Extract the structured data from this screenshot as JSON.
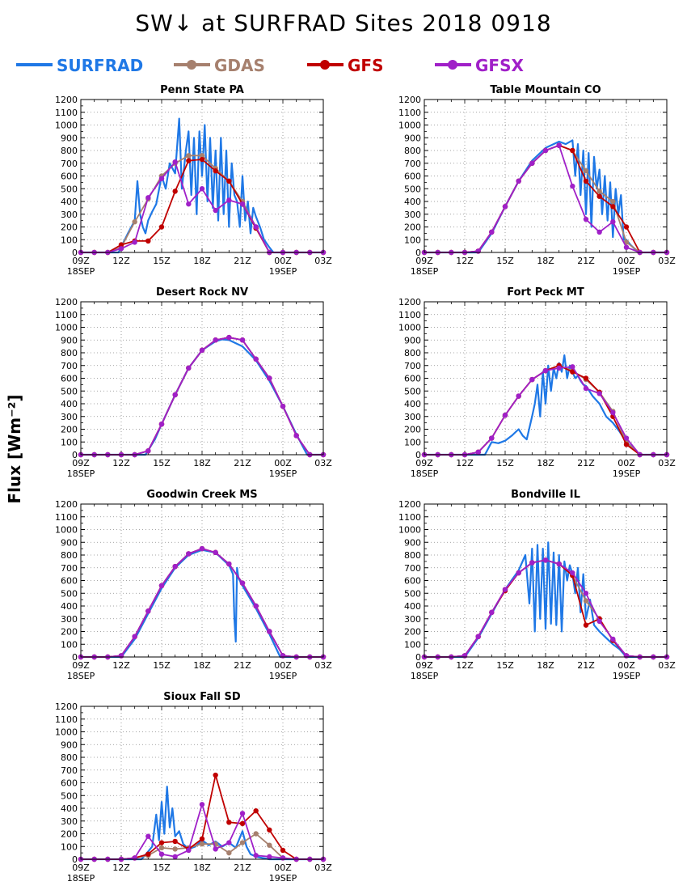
{
  "title": "SW↓ at SURFRAD Sites     2018 0918",
  "y_axis_title": "Flux [Wm⁻²]",
  "legend": [
    {
      "name": "SURFRAD",
      "color": "#1f78e6",
      "marker": false
    },
    {
      "name": "GDAS",
      "color": "#a6806e",
      "marker": true
    },
    {
      "name": "GFS",
      "color": "#c00000",
      "marker": true
    },
    {
      "name": "GFSX",
      "color": "#a020c8",
      "marker": true
    }
  ],
  "axes": {
    "y_ticks": [
      0,
      100,
      200,
      300,
      400,
      500,
      600,
      700,
      800,
      900,
      1000,
      1100,
      1200
    ],
    "ylim": [
      0,
      1200
    ],
    "x_tick_labels": [
      "09Z",
      "12Z",
      "15Z",
      "18Z",
      "21Z",
      "00Z",
      "03Z"
    ],
    "x_tick_hours": [
      9,
      12,
      15,
      18,
      21,
      24,
      27
    ],
    "xlim": [
      9,
      27
    ],
    "x_date_labels": [
      {
        "hour": 9,
        "label": "18SEP"
      },
      {
        "hour": 24,
        "label": "19SEP"
      }
    ],
    "grid": "dotted"
  },
  "chart_data": [
    {
      "type": "line",
      "title": "Penn State PA",
      "x_model_hours": [
        9,
        10,
        11,
        12,
        13,
        14,
        15,
        16,
        17,
        18,
        19,
        20,
        21,
        22,
        23,
        24,
        25,
        26,
        27
      ],
      "series": [
        {
          "name": "GDAS",
          "values": [
            0,
            0,
            0,
            40,
            240,
            420,
            600,
            700,
            760,
            760,
            660,
            560,
            400,
            200,
            0,
            0,
            0,
            0,
            0
          ]
        },
        {
          "name": "GFS",
          "values": [
            0,
            0,
            0,
            60,
            90,
            90,
            200,
            480,
            720,
            730,
            640,
            560,
            380,
            190,
            0,
            0,
            0,
            0,
            0
          ]
        },
        {
          "name": "GFSX",
          "values": [
            0,
            0,
            0,
            30,
            80,
            430,
            580,
            710,
            380,
            500,
            330,
            410,
            380,
            200,
            0,
            0,
            0,
            0,
            0
          ]
        }
      ],
      "surfrad": {
        "x": [
          9,
          11.8,
          12.5,
          13,
          13.2,
          13.4,
          13.6,
          13.8,
          14,
          14.3,
          14.6,
          15,
          15.3,
          15.6,
          16,
          16.3,
          16.5,
          16.8,
          17,
          17.2,
          17.4,
          17.6,
          17.8,
          18,
          18.2,
          18.4,
          18.6,
          18.8,
          19,
          19.2,
          19.4,
          19.6,
          19.8,
          20,
          20.2,
          20.4,
          20.6,
          20.8,
          21,
          21.2,
          21.4,
          21.6,
          21.8,
          22,
          22.3,
          22.6,
          23,
          23.3,
          27
        ],
        "y": [
          0,
          0,
          150,
          250,
          560,
          300,
          200,
          150,
          250,
          320,
          380,
          600,
          500,
          700,
          620,
          1050,
          500,
          800,
          950,
          450,
          900,
          300,
          950,
          600,
          1000,
          400,
          900,
          350,
          800,
          250,
          900,
          300,
          800,
          200,
          700,
          450,
          400,
          200,
          600,
          250,
          400,
          150,
          350,
          280,
          200,
          100,
          40,
          0,
          0
        ]
      }
    },
    {
      "type": "line",
      "title": "Table Mountain CO",
      "x_model_hours": [
        9,
        10,
        11,
        12,
        13,
        14,
        15,
        16,
        17,
        18,
        19,
        20,
        21,
        22,
        23,
        24,
        25,
        26,
        27
      ],
      "series": [
        {
          "name": "GDAS",
          "values": [
            0,
            0,
            0,
            0,
            10,
            160,
            360,
            560,
            700,
            800,
            840,
            800,
            640,
            480,
            400,
            80,
            0,
            0,
            0
          ]
        },
        {
          "name": "GFS",
          "values": [
            0,
            0,
            0,
            0,
            10,
            160,
            360,
            560,
            700,
            800,
            840,
            800,
            560,
            440,
            360,
            200,
            0,
            0,
            0
          ]
        },
        {
          "name": "GFSX",
          "values": [
            0,
            0,
            0,
            0,
            10,
            160,
            360,
            560,
            700,
            800,
            840,
            520,
            260,
            160,
            240,
            40,
            0,
            0,
            0
          ]
        }
      ],
      "surfrad": {
        "x": [
          9,
          13,
          14,
          15,
          16,
          17,
          18,
          19,
          19.5,
          20,
          20.2,
          20.4,
          20.6,
          20.8,
          21,
          21.2,
          21.4,
          21.6,
          21.8,
          22,
          22.2,
          22.4,
          22.6,
          22.8,
          23,
          23.2,
          23.4,
          23.6,
          23.8,
          24,
          24.3,
          24.6,
          25,
          27
        ],
        "y": [
          0,
          0,
          150,
          360,
          560,
          720,
          820,
          870,
          850,
          880,
          600,
          850,
          450,
          800,
          300,
          780,
          200,
          750,
          500,
          650,
          300,
          600,
          250,
          550,
          120,
          500,
          300,
          450,
          100,
          100,
          60,
          30,
          0,
          0
        ]
      }
    },
    {
      "type": "line",
      "title": "Desert Rock NV",
      "x_model_hours": [
        9,
        10,
        11,
        12,
        13,
        14,
        15,
        16,
        17,
        18,
        19,
        20,
        21,
        22,
        23,
        24,
        25,
        26,
        27
      ],
      "series": [
        {
          "name": "GDAS",
          "values": [
            0,
            0,
            0,
            0,
            0,
            30,
            240,
            470,
            680,
            820,
            900,
            920,
            900,
            750,
            600,
            380,
            150,
            0,
            0
          ]
        },
        {
          "name": "GFS",
          "values": [
            0,
            0,
            0,
            0,
            0,
            30,
            240,
            470,
            680,
            820,
            900,
            920,
            900,
            750,
            600,
            380,
            150,
            0,
            0
          ]
        },
        {
          "name": "GFSX",
          "values": [
            0,
            0,
            0,
            0,
            0,
            30,
            240,
            470,
            680,
            820,
            900,
            920,
            900,
            750,
            600,
            380,
            150,
            0,
            0
          ]
        }
      ],
      "surfrad": {
        "x": [
          9,
          13.8,
          14.5,
          15,
          16,
          17,
          18,
          19,
          19.5,
          20,
          21,
          22,
          23,
          24,
          25,
          25.8,
          27
        ],
        "y": [
          0,
          0,
          120,
          240,
          470,
          680,
          820,
          890,
          905,
          900,
          850,
          740,
          580,
          380,
          160,
          0,
          0
        ]
      }
    },
    {
      "type": "line",
      "title": "Fort Peck MT",
      "x_model_hours": [
        9,
        10,
        11,
        12,
        13,
        14,
        15,
        16,
        17,
        18,
        19,
        20,
        21,
        22,
        23,
        24,
        25,
        26,
        27
      ],
      "series": [
        {
          "name": "GDAS",
          "values": [
            0,
            0,
            0,
            0,
            20,
            130,
            310,
            460,
            590,
            660,
            700,
            660,
            590,
            490,
            340,
            100,
            0,
            0,
            0
          ]
        },
        {
          "name": "GFS",
          "values": [
            0,
            0,
            0,
            0,
            20,
            130,
            310,
            460,
            590,
            660,
            700,
            650,
            600,
            490,
            300,
            80,
            0,
            0,
            0
          ]
        },
        {
          "name": "GFSX",
          "values": [
            0,
            0,
            0,
            0,
            20,
            130,
            310,
            460,
            590,
            660,
            680,
            690,
            520,
            480,
            330,
            130,
            0,
            0,
            0
          ]
        }
      ],
      "surfrad": {
        "x": [
          9,
          13.5,
          14,
          14.5,
          15,
          15.5,
          16,
          16.3,
          16.6,
          17,
          17.2,
          17.4,
          17.6,
          17.8,
          18,
          18.2,
          18.4,
          18.6,
          18.8,
          19,
          19.2,
          19.4,
          19.6,
          19.8,
          20,
          20.2,
          20.4,
          20.6,
          20.8,
          21,
          21.5,
          22,
          22.5,
          23,
          23.5,
          24,
          24.5,
          25,
          27
        ],
        "y": [
          0,
          0,
          100,
          90,
          110,
          150,
          200,
          150,
          120,
          300,
          400,
          550,
          300,
          650,
          400,
          700,
          500,
          680,
          600,
          720,
          650,
          780,
          600,
          700,
          650,
          600,
          620,
          580,
          550,
          540,
          460,
          400,
          300,
          250,
          180,
          100,
          50,
          0,
          0
        ]
      }
    },
    {
      "type": "line",
      "title": "Goodwin Creek MS",
      "x_model_hours": [
        9,
        10,
        11,
        12,
        13,
        14,
        15,
        16,
        17,
        18,
        19,
        20,
        21,
        22,
        23,
        24,
        25,
        26,
        27
      ],
      "series": [
        {
          "name": "GDAS",
          "values": [
            0,
            0,
            0,
            10,
            160,
            360,
            560,
            710,
            810,
            850,
            820,
            730,
            580,
            400,
            200,
            10,
            0,
            0,
            0
          ]
        },
        {
          "name": "GFS",
          "values": [
            0,
            0,
            0,
            10,
            160,
            360,
            560,
            710,
            810,
            850,
            820,
            730,
            580,
            400,
            200,
            10,
            0,
            0,
            0
          ]
        },
        {
          "name": "GFSX",
          "values": [
            0,
            0,
            0,
            10,
            160,
            360,
            560,
            710,
            810,
            850,
            820,
            730,
            580,
            400,
            200,
            10,
            0,
            0,
            0
          ]
        }
      ],
      "surfrad": {
        "x": [
          9,
          12,
          13,
          14,
          15,
          16,
          17,
          18,
          19,
          20,
          20.3,
          20.4,
          20.5,
          20.6,
          20.7,
          21,
          22,
          23,
          23.8,
          27
        ],
        "y": [
          0,
          0,
          140,
          340,
          540,
          700,
          800,
          840,
          820,
          720,
          650,
          300,
          120,
          700,
          620,
          560,
          380,
          180,
          0,
          0
        ]
      }
    },
    {
      "type": "line",
      "title": "Bondville IL",
      "x_model_hours": [
        9,
        10,
        11,
        12,
        13,
        14,
        15,
        16,
        17,
        18,
        19,
        20,
        21,
        22,
        23,
        24,
        25,
        26,
        27
      ],
      "series": [
        {
          "name": "GDAS",
          "values": [
            0,
            0,
            0,
            10,
            160,
            350,
            530,
            660,
            740,
            760,
            730,
            640,
            440,
            300,
            130,
            10,
            0,
            0,
            0
          ]
        },
        {
          "name": "GFS",
          "values": [
            0,
            0,
            0,
            10,
            160,
            350,
            520,
            660,
            740,
            760,
            730,
            640,
            250,
            300,
            130,
            10,
            0,
            0,
            0
          ]
        },
        {
          "name": "GFSX",
          "values": [
            0,
            0,
            0,
            10,
            160,
            350,
            530,
            660,
            740,
            760,
            730,
            660,
            500,
            280,
            140,
            10,
            0,
            0,
            0
          ]
        }
      ],
      "surfrad": {
        "x": [
          9,
          12,
          13,
          14,
          15,
          16,
          16.5,
          16.8,
          17,
          17.2,
          17.4,
          17.6,
          17.8,
          18,
          18.2,
          18.4,
          18.6,
          18.8,
          19,
          19.2,
          19.4,
          19.6,
          19.8,
          20,
          20.2,
          20.4,
          20.6,
          20.8,
          21,
          21.3,
          21.6,
          22,
          22.5,
          23,
          23.5,
          24,
          27
        ],
        "y": [
          0,
          0,
          150,
          340,
          530,
          680,
          800,
          420,
          850,
          200,
          880,
          300,
          850,
          220,
          900,
          260,
          820,
          250,
          800,
          200,
          750,
          600,
          720,
          650,
          500,
          700,
          350,
          650,
          300,
          450,
          250,
          200,
          150,
          100,
          60,
          0,
          0
        ]
      }
    },
    {
      "type": "line",
      "title": "Sioux Fall SD",
      "x_model_hours": [
        9,
        10,
        11,
        12,
        13,
        14,
        15,
        16,
        17,
        18,
        19,
        20,
        21,
        22,
        23,
        24,
        25,
        26,
        27
      ],
      "series": [
        {
          "name": "GDAS",
          "values": [
            0,
            0,
            0,
            0,
            10,
            30,
            90,
            80,
            90,
            120,
            120,
            50,
            130,
            200,
            110,
            10,
            0,
            0,
            0
          ]
        },
        {
          "name": "GFS",
          "values": [
            0,
            0,
            0,
            0,
            10,
            40,
            130,
            140,
            80,
            160,
            660,
            290,
            280,
            380,
            230,
            70,
            0,
            0,
            0
          ]
        },
        {
          "name": "GFSX",
          "values": [
            0,
            0,
            0,
            0,
            10,
            180,
            40,
            20,
            70,
            430,
            80,
            130,
            360,
            30,
            20,
            10,
            0,
            0,
            0
          ]
        }
      ],
      "surfrad": {
        "x": [
          9,
          13.5,
          14,
          14.3,
          14.6,
          14.8,
          15,
          15.2,
          15.4,
          15.6,
          15.8,
          16,
          16.3,
          16.6,
          17,
          17.5,
          18,
          18.5,
          19,
          19.5,
          20,
          20.5,
          21,
          21.3,
          21.6,
          22,
          22.5,
          23,
          27
        ],
        "y": [
          0,
          0,
          60,
          100,
          350,
          150,
          450,
          200,
          570,
          250,
          400,
          180,
          220,
          120,
          80,
          100,
          150,
          110,
          140,
          100,
          130,
          90,
          220,
          100,
          40,
          20,
          10,
          0,
          0
        ]
      }
    }
  ]
}
